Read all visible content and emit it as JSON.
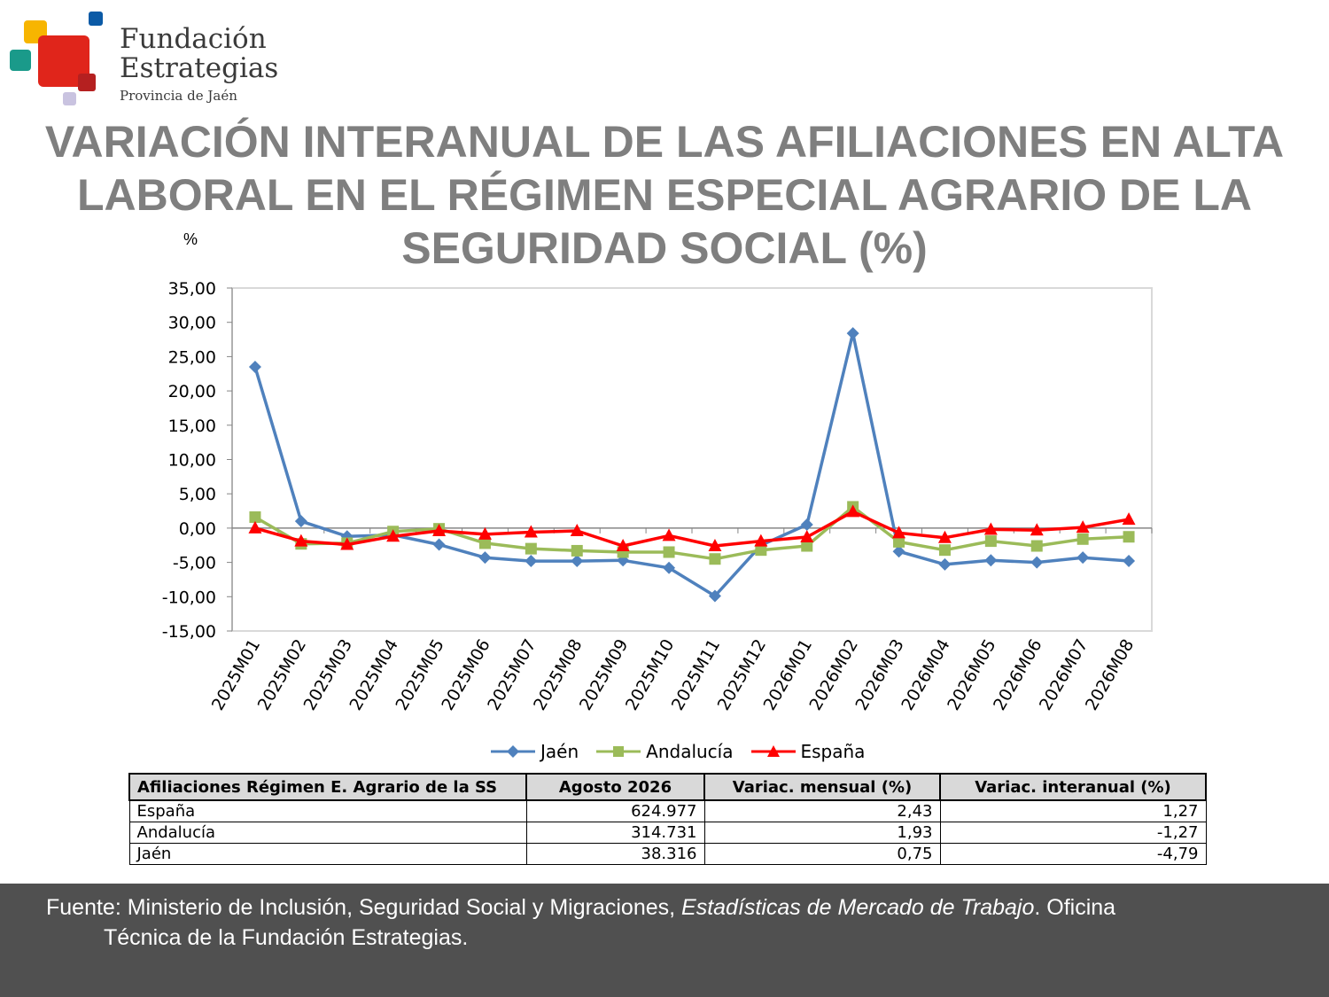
{
  "logo": {
    "line1": "Fundación",
    "line2": "Estrategias",
    "line3": "Provincia de Jaén"
  },
  "title": "VARIACIÓN INTERANUAL DE LAS AFILIACIONES EN ALTA LABORAL EN EL RÉGIMEN ESPECIAL AGRARIO DE LA SEGURIDAD SOCIAL (%)",
  "unit_label": "%",
  "chart_data": {
    "type": "line",
    "title": "",
    "ylabel": "%",
    "xlabel": "",
    "ylim": [
      -15,
      35
    ],
    "yticks": [
      35,
      30,
      25,
      20,
      15,
      10,
      5,
      0,
      -5,
      -10,
      -15
    ],
    "ytick_labels": [
      "35,00",
      "30,00",
      "25,00",
      "20,00",
      "15,00",
      "10,00",
      "5,00",
      "0,00",
      "-5,00",
      "-10,00",
      "-15,00"
    ],
    "categories": [
      "2025M01",
      "2025M02",
      "2025M03",
      "2025M04",
      "2025M05",
      "2025M06",
      "2025M07",
      "2025M08",
      "2025M09",
      "2025M10",
      "2025M11",
      "2025M12",
      "2026M01",
      "2026M02",
      "2026M03",
      "2026M04",
      "2026M05",
      "2026M06",
      "2026M07",
      "2026M08"
    ],
    "legend_position": "bottom",
    "series": [
      {
        "name": "Jaén",
        "color": "#4f81bd",
        "marker": "diamond",
        "values": [
          23.5,
          1.0,
          -1.2,
          -1.0,
          -2.4,
          -4.3,
          -4.8,
          -4.8,
          -4.7,
          -5.8,
          -9.9,
          -2.5,
          0.5,
          28.4,
          -3.4,
          -5.3,
          -4.7,
          -5.0,
          -4.3,
          -4.79
        ]
      },
      {
        "name": "Andalucía",
        "color": "#9bbb59",
        "marker": "square",
        "values": [
          1.6,
          -2.3,
          -2.2,
          -0.5,
          -0.1,
          -2.2,
          -3.0,
          -3.3,
          -3.5,
          -3.5,
          -4.5,
          -3.2,
          -2.6,
          3.1,
          -2.0,
          -3.2,
          -1.9,
          -2.6,
          -1.6,
          -1.27
        ]
      },
      {
        "name": "España",
        "color": "#ff0000",
        "marker": "triangle",
        "values": [
          0.0,
          -1.9,
          -2.4,
          -1.2,
          -0.4,
          -0.9,
          -0.6,
          -0.4,
          -2.6,
          -1.1,
          -2.6,
          -1.9,
          -1.3,
          2.4,
          -0.7,
          -1.4,
          -0.2,
          -0.3,
          0.1,
          1.27
        ]
      }
    ]
  },
  "table": {
    "headers": [
      "Afiliaciones Régimen E. Agrario de la SS",
      "Agosto 2026",
      "Variac. mensual (%)",
      "Variac. interanual (%)"
    ],
    "rows": [
      [
        "España",
        "624.977",
        "2,43",
        "1,27"
      ],
      [
        "Andalucía",
        "314.731",
        "1,93",
        "-1,27"
      ],
      [
        "Jaén",
        "38.316",
        "0,75",
        "-4,79"
      ]
    ]
  },
  "footer": {
    "source_prefix": "Fuente: Ministerio de Inclusión, Seguridad Social y Migraciones, ",
    "source_italic": "Estadísticas de Mercado de Trabajo",
    "source_suffix": ". Oficina",
    "line2": "Técnica de la Fundación Estrategias."
  },
  "colors": {
    "title": "#7f7f7f",
    "footer_bg": "#505050",
    "table_header_bg": "#d9d9d9"
  }
}
